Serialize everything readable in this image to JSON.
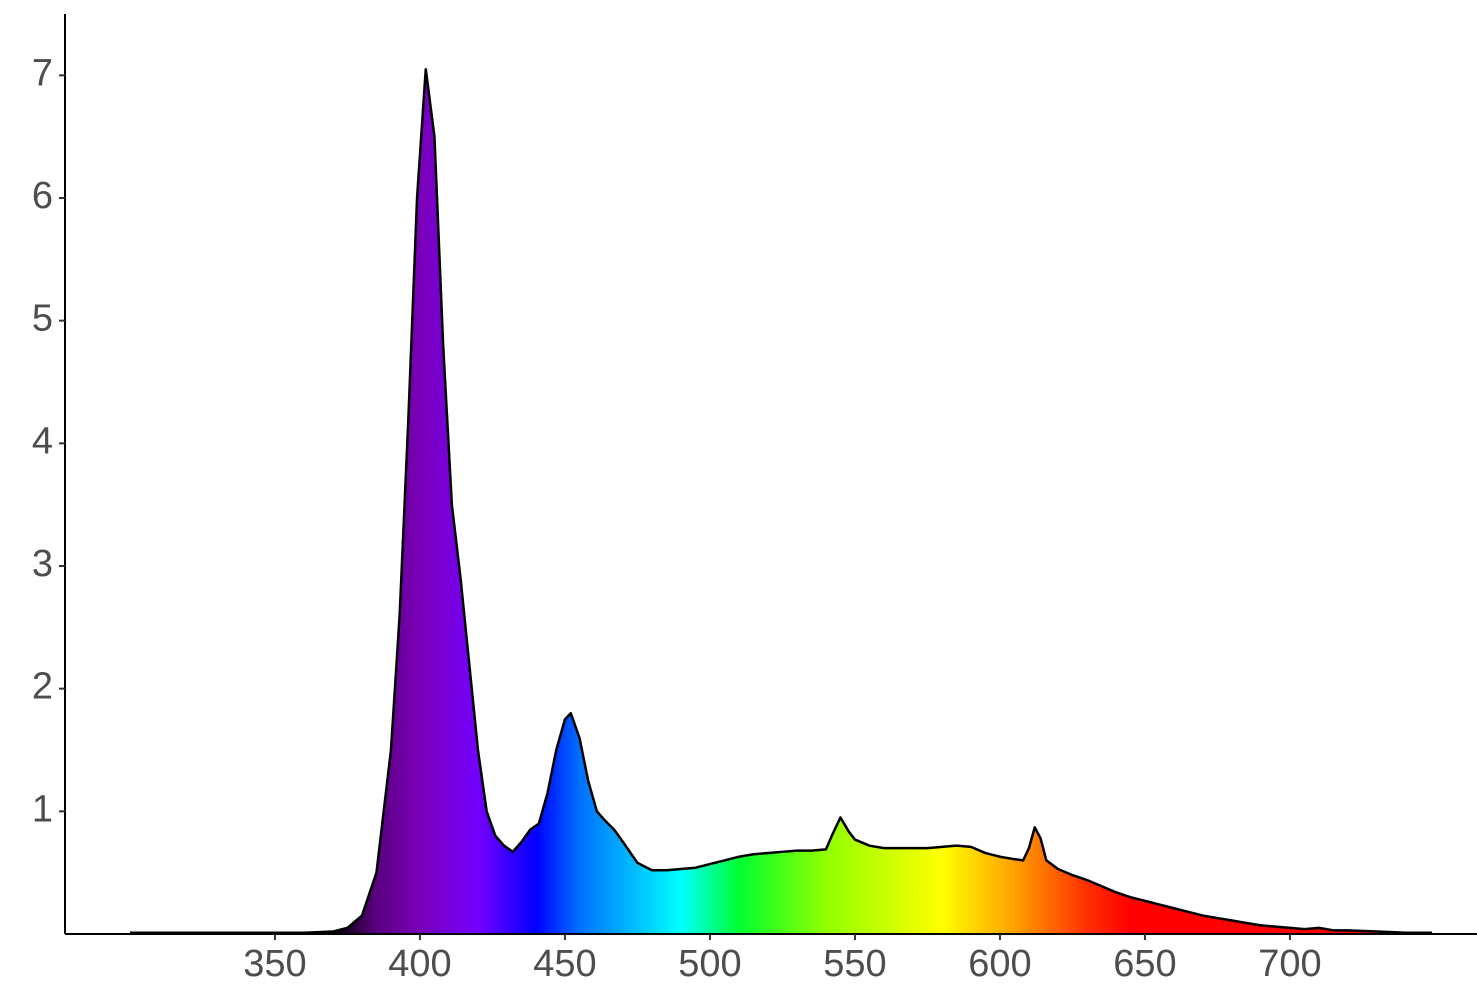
{
  "chart_data": {
    "type": "area",
    "x": [
      300,
      310,
      320,
      330,
      340,
      350,
      360,
      370,
      375,
      380,
      385,
      390,
      393,
      396,
      399,
      402,
      405,
      408,
      411,
      414,
      417,
      420,
      423,
      426,
      429,
      432,
      435,
      438,
      441,
      444,
      447,
      450,
      452,
      455,
      458,
      461,
      464,
      467,
      470,
      475,
      480,
      485,
      490,
      495,
      500,
      505,
      510,
      515,
      520,
      525,
      530,
      535,
      540,
      542,
      545,
      548,
      550,
      555,
      560,
      565,
      570,
      575,
      580,
      585,
      590,
      595,
      600,
      605,
      608,
      610,
      612,
      614,
      616,
      620,
      625,
      630,
      635,
      640,
      645,
      650,
      655,
      660,
      665,
      670,
      675,
      680,
      685,
      690,
      695,
      700,
      705,
      710,
      715,
      720,
      730,
      740,
      749
    ],
    "values": [
      0.01,
      0.01,
      0.01,
      0.01,
      0.01,
      0.01,
      0.01,
      0.02,
      0.05,
      0.15,
      0.5,
      1.5,
      2.6,
      4.2,
      6.0,
      7.05,
      6.5,
      4.8,
      3.5,
      2.9,
      2.2,
      1.5,
      1.0,
      0.8,
      0.72,
      0.67,
      0.75,
      0.85,
      0.9,
      1.15,
      1.5,
      1.75,
      1.8,
      1.6,
      1.25,
      1.0,
      0.92,
      0.85,
      0.75,
      0.58,
      0.52,
      0.52,
      0.53,
      0.54,
      0.57,
      0.6,
      0.63,
      0.65,
      0.66,
      0.67,
      0.68,
      0.68,
      0.69,
      0.8,
      0.95,
      0.83,
      0.77,
      0.72,
      0.7,
      0.7,
      0.7,
      0.7,
      0.71,
      0.72,
      0.71,
      0.66,
      0.63,
      0.61,
      0.6,
      0.7,
      0.87,
      0.78,
      0.6,
      0.53,
      0.48,
      0.44,
      0.39,
      0.34,
      0.3,
      0.27,
      0.24,
      0.21,
      0.18,
      0.15,
      0.13,
      0.11,
      0.09,
      0.07,
      0.06,
      0.05,
      0.04,
      0.05,
      0.03,
      0.03,
      0.02,
      0.01,
      0.01
    ],
    "fill_gradient": [
      {
        "nm": 370,
        "color": "#000000"
      },
      {
        "nm": 385,
        "color": "#5a0080"
      },
      {
        "nm": 400,
        "color": "#7a00b8"
      },
      {
        "nm": 420,
        "color": "#7400ff"
      },
      {
        "nm": 440,
        "color": "#0000ff"
      },
      {
        "nm": 455,
        "color": "#0070ff"
      },
      {
        "nm": 490,
        "color": "#00ffff"
      },
      {
        "nm": 510,
        "color": "#00ff30"
      },
      {
        "nm": 540,
        "color": "#90ff00"
      },
      {
        "nm": 580,
        "color": "#ffff00"
      },
      {
        "nm": 605,
        "color": "#ffa000"
      },
      {
        "nm": 630,
        "color": "#ff3000"
      },
      {
        "nm": 645,
        "color": "#ff0000"
      },
      {
        "nm": 750,
        "color": "#ff0000"
      }
    ],
    "line_color": "#000000",
    "xlim": [
      277.6,
      764.5
    ],
    "ylim": [
      0,
      7.5
    ],
    "xticks": [
      350,
      400,
      450,
      500,
      550,
      600,
      650,
      700
    ],
    "yticks": [
      1,
      2,
      3,
      4,
      5,
      6,
      7
    ]
  }
}
